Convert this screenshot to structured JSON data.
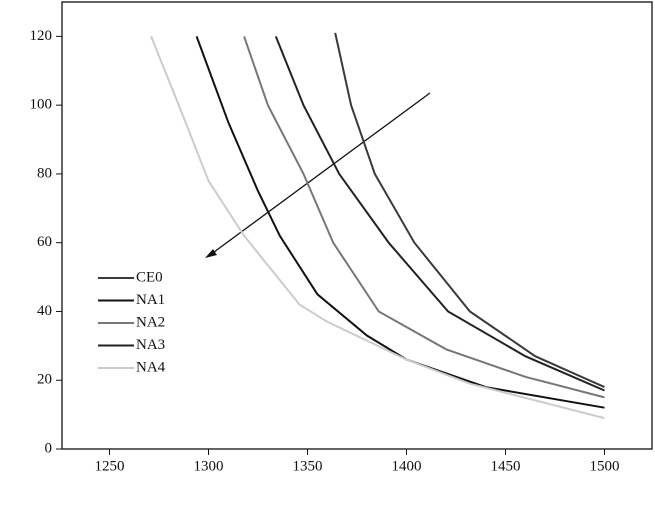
{
  "chart_data": {
    "type": "line",
    "xlim": [
      1226,
      1524
    ],
    "xticks": [
      1250,
      1300,
      1350,
      1400,
      1450,
      1500
    ],
    "ylim": [
      0,
      130
    ],
    "yticks": [
      0,
      20,
      40,
      60,
      80,
      100,
      120
    ],
    "legend": "lower-left",
    "series": [
      {
        "name": "CE0",
        "color": "#3a3a3a",
        "x": [
          1364,
          1372,
          1384,
          1404,
          1432,
          1465,
          1500
        ],
        "values": [
          121,
          100,
          80,
          60,
          40,
          27,
          18
        ]
      },
      {
        "name": "NA1",
        "color": "#111111",
        "x": [
          1294,
          1310,
          1325,
          1336,
          1355,
          1380,
          1400,
          1440,
          1500
        ],
        "values": [
          120,
          95,
          75,
          62,
          45,
          33,
          26,
          18,
          12
        ]
      },
      {
        "name": "NA2",
        "color": "#777777",
        "x": [
          1318,
          1330,
          1348,
          1363,
          1386,
          1420,
          1460,
          1500
        ],
        "values": [
          120,
          100,
          80,
          60,
          40,
          29,
          21,
          15
        ]
      },
      {
        "name": "NA3",
        "color": "#222222",
        "x": [
          1334,
          1348,
          1366,
          1391,
          1421,
          1460,
          1500
        ],
        "values": [
          120,
          100,
          80,
          60,
          40,
          27,
          17
        ]
      },
      {
        "name": "NA4",
        "color": "#cccccc",
        "x": [
          1271,
          1285,
          1300,
          1318,
          1346,
          1360,
          1400,
          1432,
          1500
        ],
        "values": [
          120,
          100,
          78,
          62,
          42,
          37,
          26,
          19,
          9
        ]
      }
    ]
  }
}
